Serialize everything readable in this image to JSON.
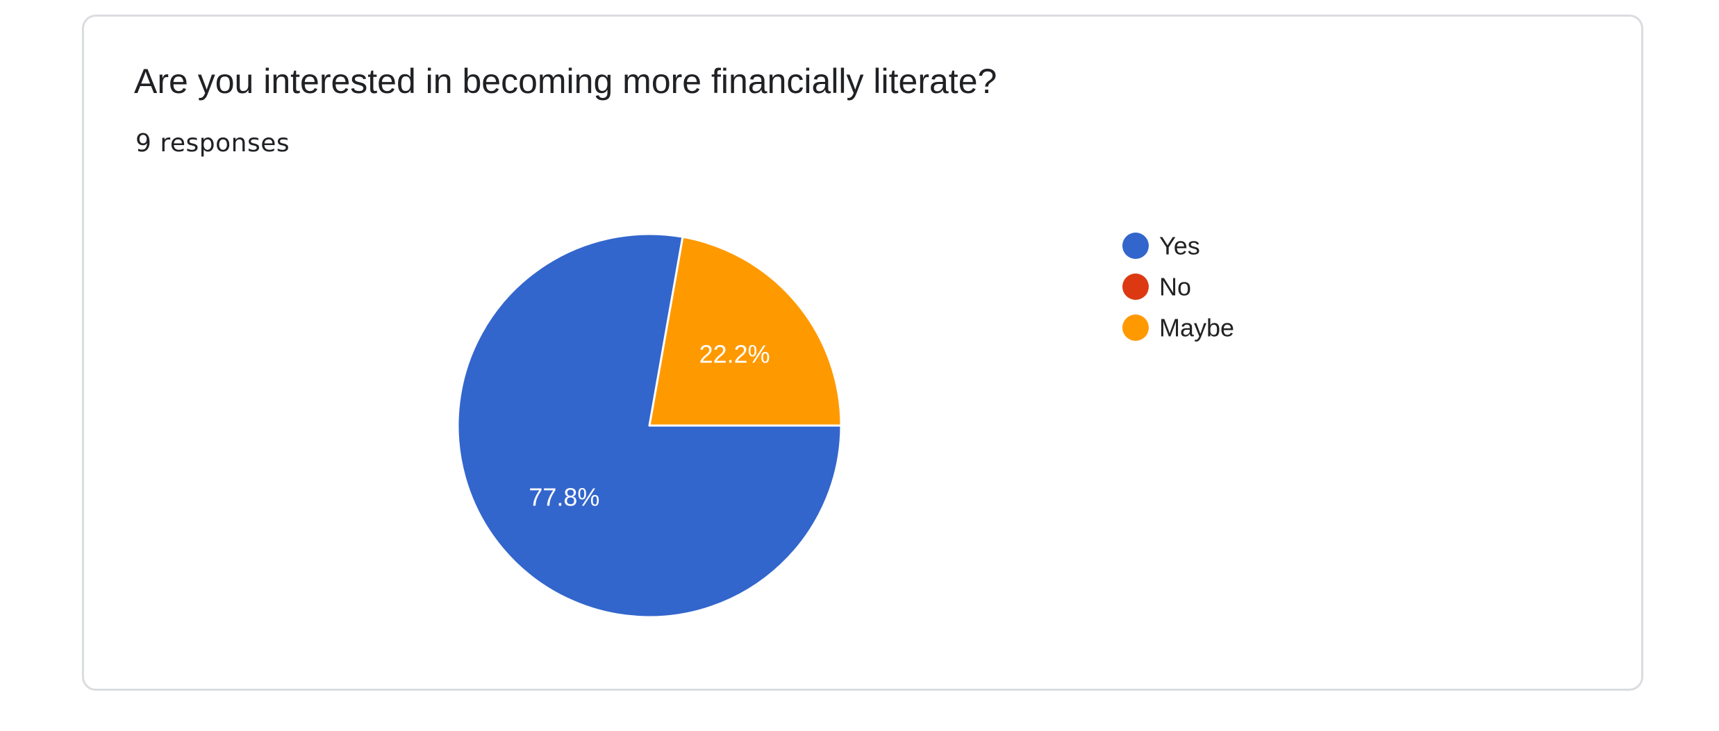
{
  "question": "Are you interested in becoming more financially literate?",
  "responses_text": "9 responses",
  "chart_data": {
    "type": "pie",
    "title": "Are you interested in becoming more financially literate?",
    "total_responses": 9,
    "slices": [
      {
        "label": "Yes",
        "value": 7,
        "percent": 77.8,
        "percent_text": "77.8%",
        "color": "#3366cc"
      },
      {
        "label": "No",
        "value": 0,
        "percent": 0,
        "percent_text": "",
        "color": "#dc3912"
      },
      {
        "label": "Maybe",
        "value": 2,
        "percent": 22.2,
        "percent_text": "22.2%",
        "color": "#ff9900"
      }
    ],
    "legend": [
      "Yes",
      "No",
      "Maybe"
    ],
    "legend_position": "right"
  }
}
